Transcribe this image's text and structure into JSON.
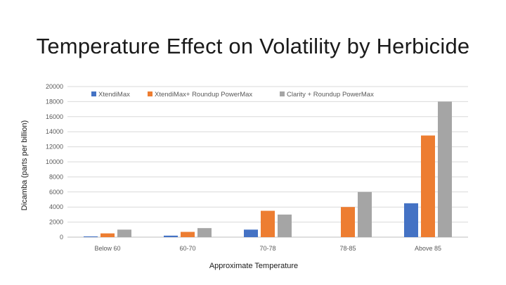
{
  "slide": {
    "title": "Temperature Effect on Volatility by Herbicide"
  },
  "chart_data": {
    "type": "bar",
    "title": "Temperature Effect on Volatility by Herbicide",
    "xlabel": "Approximate Temperature",
    "ylabel": "Dicamba (parts per billion)",
    "categories": [
      "Below 60",
      "60-70",
      "70-78",
      "78-85",
      "Above 85"
    ],
    "ylim": [
      0,
      20000
    ],
    "yticks": [
      0,
      2000,
      4000,
      6000,
      8000,
      10000,
      12000,
      14000,
      16000,
      18000,
      20000
    ],
    "grid": true,
    "legend_position": "top",
    "series": [
      {
        "name": "XtendiMax",
        "color": "#4472c4",
        "values": [
          100,
          200,
          1000,
          0,
          4500
        ]
      },
      {
        "name": "XtendiMax+ Roundup PowerMax",
        "color": "#ed7d31",
        "values": [
          500,
          700,
          3500,
          4000,
          13500
        ]
      },
      {
        "name": "Clarity + Roundup PowerMax",
        "color": "#a5a5a5",
        "values": [
          1000,
          1200,
          3000,
          6000,
          18000
        ]
      }
    ]
  }
}
